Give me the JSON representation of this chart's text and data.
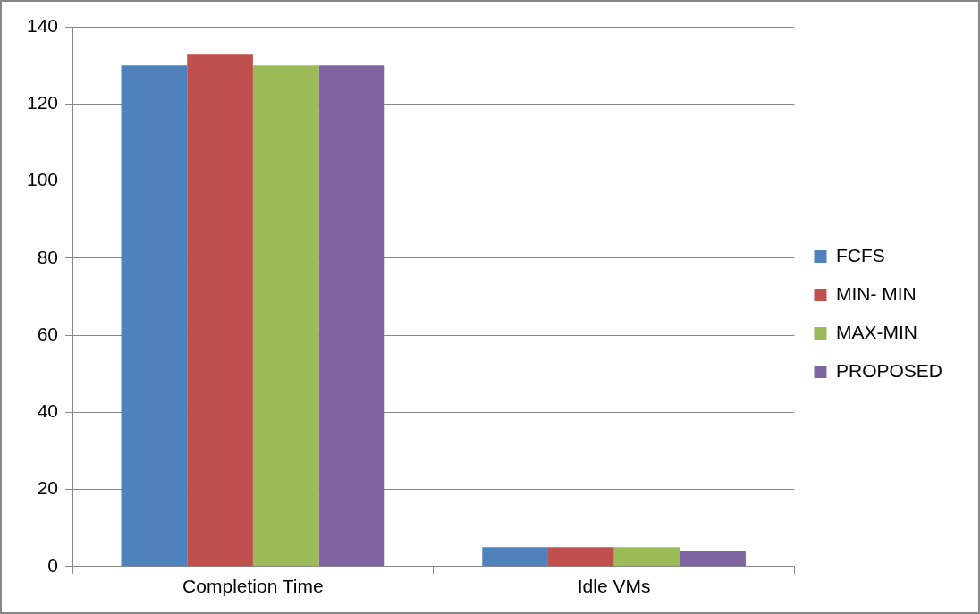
{
  "chart_data": {
    "type": "bar",
    "categories": [
      "Completion Time",
      "Idle VMs"
    ],
    "series": [
      {
        "name": "FCFS",
        "color": "#4f81bd",
        "values": [
          130,
          5
        ]
      },
      {
        "name": "MIN- MIN",
        "color": "#c0504d",
        "values": [
          133,
          5
        ]
      },
      {
        "name": "MAX-MIN",
        "color": "#9bbb59",
        "values": [
          130,
          5
        ]
      },
      {
        "name": "PROPOSED",
        "color": "#8064a2",
        "values": [
          130,
          4
        ]
      }
    ],
    "ylim": [
      0,
      140
    ],
    "yticks": [
      0,
      20,
      40,
      60,
      80,
      100,
      120,
      140
    ],
    "grid": "y",
    "legend": "right"
  }
}
